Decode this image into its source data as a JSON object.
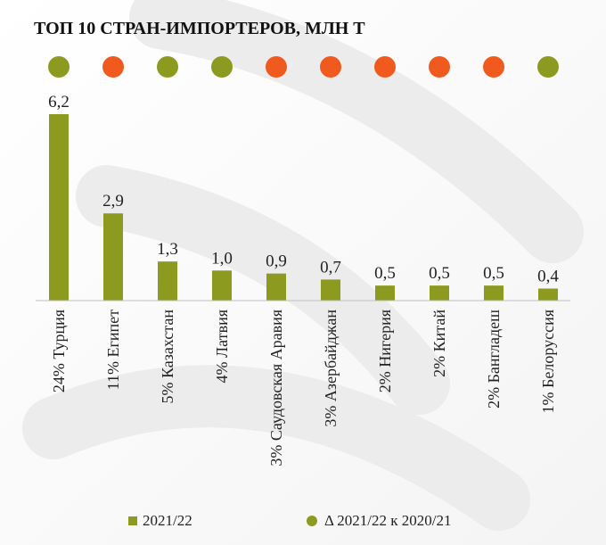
{
  "chart_data": {
    "type": "bar",
    "title": "ТОП 10 СТРАН-ИМПОРТЕРОВ, МЛН Т",
    "categories": [
      "24% Турция",
      "11% Египет",
      "5% Казахстан",
      "4% Латвия",
      "3% Саудовская Аравия",
      "3% Азербайджан",
      "2% Нигерия",
      "2% Китай",
      "2% Бангладеш",
      "1% Белоруссия"
    ],
    "value_labels": [
      "6,2",
      "2,9",
      "1,3",
      "1,0",
      "0,9",
      "0,7",
      "0,5",
      "0,5",
      "0,5",
      "0,4"
    ],
    "series": [
      {
        "name": "2021/22",
        "values": [
          6.2,
          2.9,
          1.3,
          1.0,
          0.9,
          0.7,
          0.5,
          0.5,
          0.5,
          0.4
        ],
        "color": "#8c9a1f"
      },
      {
        "name": "Δ 2021/22 к 2020/21",
        "type": "indicator",
        "values": [
          "up",
          "down",
          "up",
          "up",
          "down",
          "down",
          "down",
          "down",
          "down",
          "up"
        ],
        "colors": {
          "up": "#8c9a1f",
          "down": "#f05a1e"
        }
      }
    ],
    "ylim": [
      0,
      6.2
    ],
    "grid": false,
    "legend": "bottom"
  }
}
